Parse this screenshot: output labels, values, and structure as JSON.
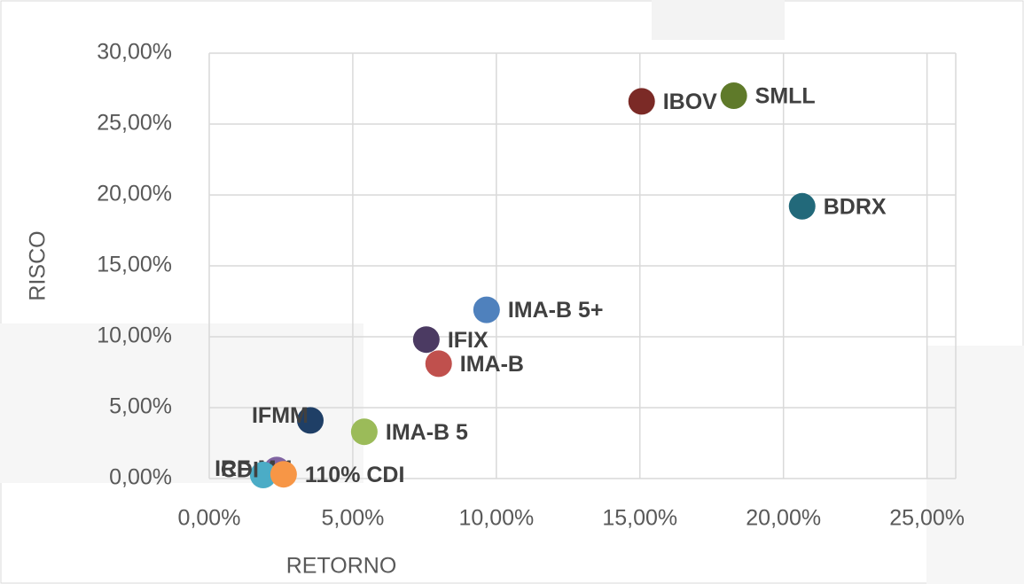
{
  "chart_data": {
    "type": "scatter",
    "x_label": "RETORNO",
    "y_label": "RISCO",
    "xlim": [
      0,
      26
    ],
    "ylim": [
      0,
      30
    ],
    "xticks": [
      {
        "value": 0,
        "label": "0,00%"
      },
      {
        "value": 5,
        "label": "5,00%"
      },
      {
        "value": 10,
        "label": "10,00%"
      },
      {
        "value": 15,
        "label": "15,00%"
      },
      {
        "value": 20,
        "label": "20,00%"
      },
      {
        "value": 25,
        "label": "25,00%"
      }
    ],
    "yticks": [
      {
        "value": 0,
        "label": "0,00%"
      },
      {
        "value": 5,
        "label": "5,00%"
      },
      {
        "value": 10,
        "label": "10,00%"
      },
      {
        "value": 15,
        "label": "15,00%"
      },
      {
        "value": 20,
        "label": "20,00%"
      },
      {
        "value": 25,
        "label": "25,00%"
      },
      {
        "value": 30,
        "label": "30,00%"
      }
    ],
    "grid": true,
    "series": [
      {
        "name": "IBOV",
        "color": "#7b2a26",
        "x": [
          15.06
        ],
        "values": [
          26.6
        ]
      },
      {
        "name": "SMLL",
        "color": "#5f7a2a",
        "x": [
          18.27
        ],
        "values": [
          27.0
        ]
      },
      {
        "name": "BDRX",
        "color": "#22697a",
        "x": [
          20.65
        ],
        "values": [
          19.2
        ]
      },
      {
        "name": "IMA-B 5+",
        "color": "#4f81bd",
        "x": [
          9.66
        ],
        "values": [
          11.9
        ]
      },
      {
        "name": "IFIX",
        "color": "#4b3a62",
        "x": [
          7.56
        ],
        "values": [
          9.8
        ]
      },
      {
        "name": "IMA-B",
        "color": "#c0504d",
        "x": [
          7.99
        ],
        "values": [
          8.1
        ]
      },
      {
        "name": "IFMM",
        "color": "#1f3f66",
        "x": [
          3.52
        ],
        "values": [
          4.1
        ]
      },
      {
        "name": "IMA-B 5",
        "color": "#9bbb59",
        "x": [
          5.4
        ],
        "values": [
          3.3
        ]
      },
      {
        "name": "IRF-M 1",
        "color": "#8064a2",
        "x": [
          2.35
        ],
        "values": [
          0.6
        ]
      },
      {
        "name": "CDI",
        "color": "#4bacc6",
        "x": [
          1.88
        ],
        "values": [
          0.25
        ]
      },
      {
        "name": "110% CDI",
        "color": "#f79646",
        "x": [
          2.59
        ],
        "values": [
          0.3
        ]
      }
    ]
  }
}
